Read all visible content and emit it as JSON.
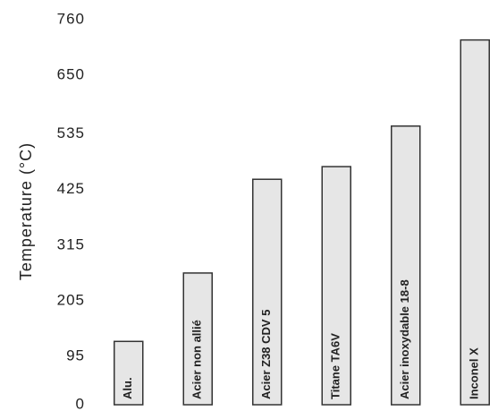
{
  "chart_data": {
    "type": "bar",
    "y_label": "Temperature (°C)",
    "categories": [
      "Alu.",
      "Acier non allié",
      "Acier Z38 CDV 5",
      "Titane TA6V",
      "Acier inoxydable 18-8",
      "Inconel X"
    ],
    "values": [
      125,
      260,
      445,
      470,
      550,
      720
    ],
    "color": "#e6e6e6",
    "ylim": [
      0,
      760
    ],
    "yticks": [
      0,
      95,
      205,
      315,
      425,
      535,
      650,
      760
    ]
  }
}
